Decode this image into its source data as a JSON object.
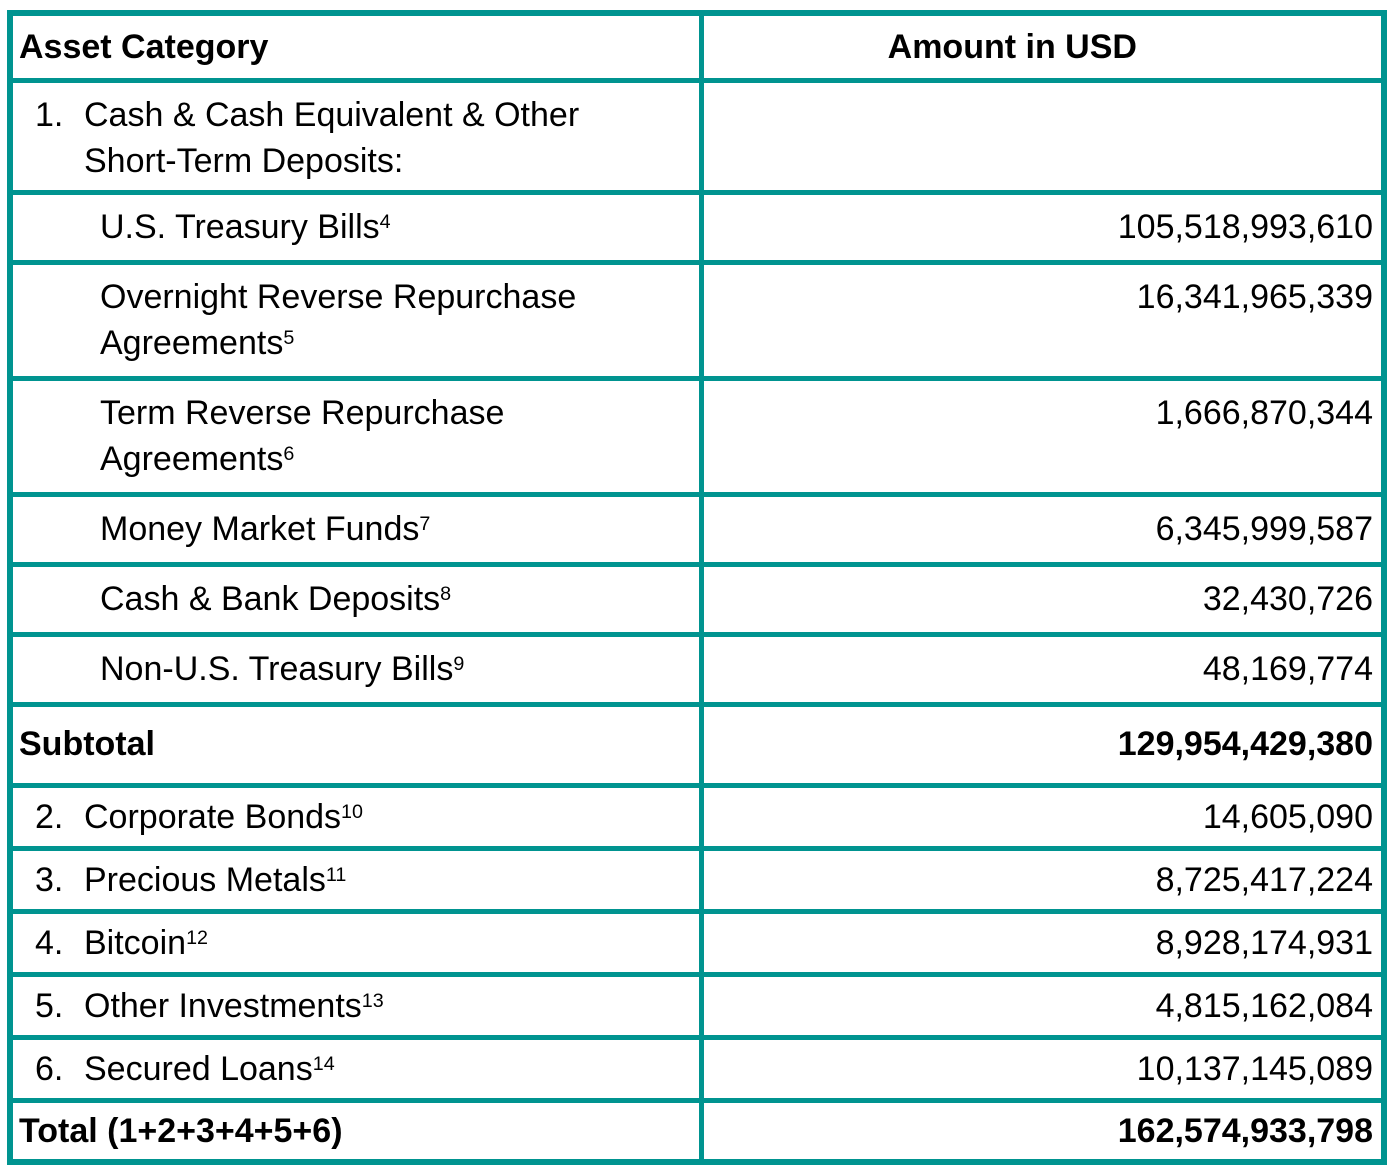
{
  "theme": {
    "border_color": "#009490",
    "background_color": "#FFFFFF",
    "text_color": "#000000"
  },
  "table": {
    "header": {
      "asset_category": "Asset Category",
      "amount_usd": "Amount in USD"
    },
    "rows": [
      {
        "num": "1.",
        "label": "Cash & Cash Equivalent & Other Short-Term Deposits:",
        "amount": ""
      },
      {
        "label": "U.S. Treasury Bills",
        "sup": "4",
        "amount": "105,518,993,610"
      },
      {
        "label": "Overnight Reverse Repurchase Agreements",
        "sup": "5",
        "amount": "16,341,965,339"
      },
      {
        "label": "Term Reverse Repurchase Agreements",
        "sup": "6",
        "amount": "1,666,870,344"
      },
      {
        "label": "Money Market Funds",
        "sup": "7",
        "amount": "6,345,999,587"
      },
      {
        "label": "Cash & Bank Deposits",
        "sup": "8",
        "amount": "32,430,726"
      },
      {
        "label": "Non-U.S. Treasury Bills",
        "sup": "9",
        "amount": "48,169,774"
      },
      {
        "label": "Subtotal",
        "amount": "129,954,429,380"
      },
      {
        "num": "2.",
        "label": "Corporate Bonds",
        "sup": "10",
        "amount": "14,605,090"
      },
      {
        "num": "3.",
        "label": "Precious Metals",
        "sup": "11",
        "amount": "8,725,417,224"
      },
      {
        "num": "4.",
        "label": "Bitcoin",
        "sup": "12",
        "amount": "8,928,174,931"
      },
      {
        "num": "5.",
        "label": "Other Investments",
        "sup": "13",
        "amount": "4,815,162,084"
      },
      {
        "num": "6.",
        "label": "Secured Loans",
        "sup": "14",
        "amount": "10,137,145,089"
      },
      {
        "label": "Total (1+2+3+4+5+6)",
        "amount": "162,574,933,798"
      }
    ]
  }
}
